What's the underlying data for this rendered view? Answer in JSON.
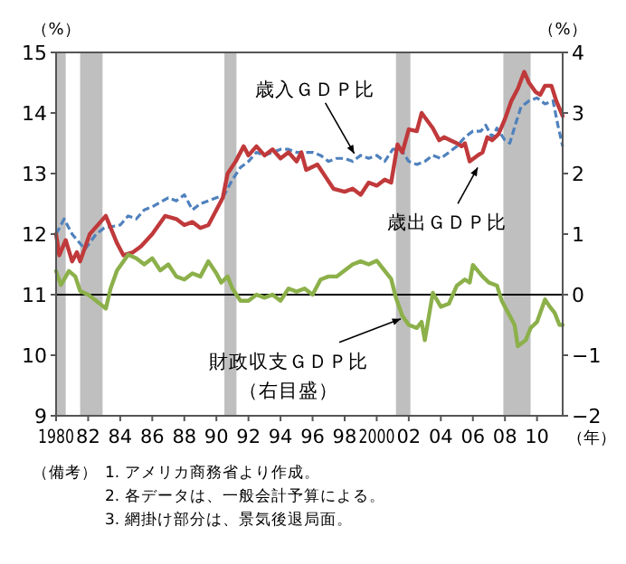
{
  "chart_data": {
    "type": "line",
    "xlabel": "（年）",
    "ylabel": "（%）",
    "y2label": "（%）",
    "xlim": [
      1980,
      2011.6
    ],
    "xticks": [
      {
        "value": 1980,
        "label": "1980"
      },
      {
        "value": 1982,
        "label": "82"
      },
      {
        "value": 1984,
        "label": "84"
      },
      {
        "value": 1986,
        "label": "86"
      },
      {
        "value": 1988,
        "label": "88"
      },
      {
        "value": 1990,
        "label": "90"
      },
      {
        "value": 1992,
        "label": "92"
      },
      {
        "value": 1994,
        "label": "94"
      },
      {
        "value": 1996,
        "label": "96"
      },
      {
        "value": 1998,
        "label": "98"
      },
      {
        "value": 2000,
        "label": "2000"
      },
      {
        "value": 2002,
        "label": "02"
      },
      {
        "value": 2004,
        "label": "04"
      },
      {
        "value": 2006,
        "label": "06"
      },
      {
        "value": 2008,
        "label": "08"
      },
      {
        "value": 2010,
        "label": "10"
      }
    ],
    "ylim": [
      9,
      15
    ],
    "yticks": [
      9,
      10,
      11,
      12,
      13,
      14,
      15
    ],
    "y2lim": [
      -2,
      4
    ],
    "y2ticks": [
      {
        "value": -2,
        "label": "−2"
      },
      {
        "value": -1,
        "label": "−1"
      },
      0,
      1,
      2,
      3,
      4
    ],
    "grid": false,
    "series": [
      {
        "color": "#4f81bd",
        "line_style": "dashed",
        "x": [
          1980,
          1980.5,
          1981,
          1981.8,
          1982.5,
          1983,
          1984,
          1984.5,
          1985,
          1985.5,
          1986,
          1987,
          1987.5,
          1988,
          1988.5,
          1989,
          1989.5,
          1990,
          1990.5,
          1991,
          1991.5,
          1992,
          1992.5,
          1993,
          1993.5,
          1994,
          1994.5,
          1995,
          1996,
          1996.5,
          1997,
          1997.5,
          1998,
          1998.5,
          1999,
          1999.5,
          2000,
          2000.5,
          2001,
          2001.5,
          2002,
          2002.5,
          2003,
          2003.5,
          2004,
          2004.5,
          2005,
          2005.5,
          2006,
          2006.5,
          2006.8,
          2007.2,
          2007.5,
          2008,
          2008.3,
          2008.7,
          2009,
          2009.5,
          2010,
          2010.5,
          2011,
          2011.3,
          2011.6
        ],
        "values": [
          12.0,
          12.25,
          12.0,
          11.75,
          12.0,
          12.1,
          12.15,
          12.3,
          12.25,
          12.4,
          12.45,
          12.6,
          12.55,
          12.65,
          12.4,
          12.5,
          12.55,
          12.6,
          12.65,
          12.9,
          13.1,
          13.2,
          13.35,
          13.3,
          13.35,
          13.4,
          13.4,
          13.35,
          13.35,
          13.3,
          13.2,
          13.25,
          13.25,
          13.2,
          13.3,
          13.25,
          13.3,
          13.2,
          13.4,
          13.4,
          13.2,
          13.15,
          13.2,
          13.3,
          13.25,
          13.35,
          13.45,
          13.6,
          13.7,
          13.7,
          13.8,
          13.6,
          13.75,
          13.55,
          13.5,
          13.85,
          14.1,
          14.2,
          14.25,
          14.15,
          14.2,
          13.8,
          13.45
        ]
      },
      {
        "color": "#c0393b",
        "line_style": "solid",
        "x": [
          1980,
          1980.2,
          1980.6,
          1981,
          1981.3,
          1981.5,
          1982.1,
          1983.1,
          1983.8,
          1984.2,
          1984.8,
          1985.3,
          1986,
          1986.8,
          1987.5,
          1988,
          1988.5,
          1989,
          1989.5,
          1990,
          1990.4,
          1990.7,
          1991.2,
          1991.7,
          1992,
          1992.5,
          1993,
          1993.5,
          1994,
          1994.5,
          1995,
          1995.3,
          1995.6,
          1996.3,
          1996.8,
          1997.3,
          1998,
          1998.5,
          1999,
          1999.5,
          2000,
          2000.5,
          2000.9,
          2001.3,
          2001.6,
          2002,
          2002.5,
          2002.8,
          2003.5,
          2003.9,
          2004.2,
          2004.6,
          2005,
          2005.3,
          2005.5,
          2005.8,
          2006.3,
          2006.6,
          2006.9,
          2007.2,
          2007.6,
          2008,
          2008.4,
          2008.8,
          2009.2,
          2009.5,
          2009.9,
          2010.2,
          2010.5,
          2010.9,
          2011.2,
          2011.6
        ],
        "values": [
          12.0,
          11.65,
          11.9,
          11.55,
          11.7,
          11.55,
          12.0,
          12.3,
          11.85,
          11.65,
          11.7,
          11.8,
          12.0,
          12.3,
          12.25,
          12.15,
          12.2,
          12.1,
          12.15,
          12.4,
          12.6,
          13.0,
          13.2,
          13.45,
          13.3,
          13.45,
          13.3,
          13.4,
          13.25,
          13.35,
          13.2,
          13.35,
          13.06,
          13.15,
          12.95,
          12.75,
          12.7,
          12.75,
          12.65,
          12.85,
          12.8,
          12.9,
          12.85,
          13.48,
          13.35,
          13.73,
          13.7,
          14.0,
          13.75,
          13.55,
          13.6,
          13.55,
          13.5,
          13.45,
          13.5,
          13.2,
          13.3,
          13.35,
          13.6,
          13.55,
          13.65,
          13.9,
          14.2,
          14.4,
          14.68,
          14.5,
          14.35,
          14.3,
          14.45,
          14.45,
          14.2,
          13.95
        ]
      },
      {
        "color": "#8cb04a",
        "line_style": "solid",
        "axis": "y2",
        "x": [
          1980,
          1980.3,
          1980.8,
          1981.2,
          1981.5,
          1982,
          1982.5,
          1983.1,
          1983.4,
          1983.8,
          1984.5,
          1985,
          1985.5,
          1986,
          1986.5,
          1987,
          1987.5,
          1988,
          1988.5,
          1989,
          1989.5,
          1990,
          1990.3,
          1990.7,
          1991,
          1991.5,
          1992,
          1992.5,
          1993,
          1993.5,
          1994,
          1994.5,
          1995,
          1995.5,
          1996,
          1996.5,
          1997,
          1997.5,
          1998,
          1998.5,
          1999,
          1999.5,
          2000,
          2000.9,
          2001.2,
          2001.6,
          2002,
          2002.5,
          2002.8,
          2003.0,
          2003.5,
          2004.0,
          2004.5,
          2005,
          2005.5,
          2005.8,
          2006.0,
          2006.6,
          2007,
          2007.5,
          2007.8,
          2008.2,
          2008.6,
          2008.8,
          2009.3,
          2009.6,
          2010,
          2010.5,
          2010.8,
          2011.1,
          2011.4,
          2011.6
        ],
        "values": [
          0.39,
          0.16,
          0.39,
          0.3,
          0.06,
          0.0,
          -0.1,
          -0.23,
          0.1,
          0.4,
          0.66,
          0.6,
          0.5,
          0.6,
          0.4,
          0.5,
          0.3,
          0.25,
          0.35,
          0.3,
          0.55,
          0.35,
          0.2,
          0.3,
          0.1,
          -0.1,
          -0.1,
          0.0,
          -0.05,
          0.0,
          -0.1,
          0.1,
          0.05,
          0.1,
          0.0,
          0.25,
          0.3,
          0.3,
          0.4,
          0.5,
          0.55,
          0.5,
          0.56,
          0.26,
          -0.05,
          -0.35,
          -0.5,
          -0.55,
          -0.45,
          -0.75,
          0.03,
          -0.2,
          -0.15,
          0.15,
          0.25,
          0.2,
          0.49,
          0.3,
          0.2,
          0.15,
          -0.1,
          -0.3,
          -0.5,
          -0.85,
          -0.75,
          -0.55,
          -0.45,
          -0.08,
          -0.2,
          -0.3,
          -0.5,
          -0.5
        ]
      }
    ],
    "bands": [
      {
        "axis": "x",
        "from": 1980.0,
        "to": 1980.6,
        "color": "#bfbfbf"
      },
      {
        "axis": "x",
        "from": 1981.5,
        "to": 1982.9,
        "color": "#bfbfbf"
      },
      {
        "axis": "x",
        "from": 1990.5,
        "to": 1991.25,
        "color": "#bfbfbf"
      },
      {
        "axis": "x",
        "from": 2001.2,
        "to": 2002.1,
        "color": "#bfbfbf"
      },
      {
        "axis": "x",
        "from": 2007.9,
        "to": 2009.6,
        "color": "#bfbfbf"
      }
    ],
    "ref_lines": [
      {
        "axis": "y2",
        "value": 0,
        "color": "#000000",
        "line_style": "solid"
      }
    ],
    "annotations": [
      {
        "text": "歳入ＧＤＰ比",
        "x": 1998.6,
        "y": 13.33
      },
      {
        "text": "歳出ＧＤＰ比",
        "x": 2006.3,
        "y": 13.1
      },
      {
        "text": "財政収支ＧＤＰ比（右目盛）",
        "x": 2001.5,
        "y": 10.6
      },
      "（備考）",
      "1. アメリカ商務省より作成。",
      "2. 各データは、一般会計予算による。",
      "3. 網掛け部分は、景気後退局面。"
    ]
  }
}
